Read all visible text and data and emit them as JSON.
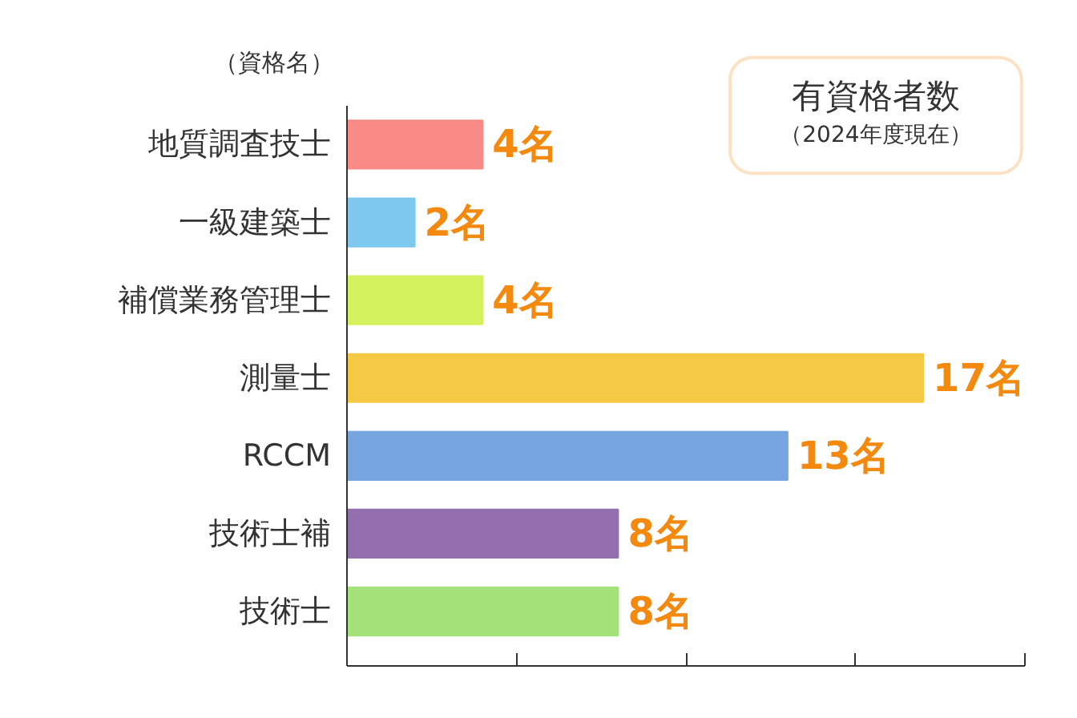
{
  "chart_data": {
    "type": "bar",
    "orientation": "horizontal",
    "title": "有資格者数",
    "subtitle": "（2024年度現在）",
    "ylabel": "（資格名）",
    "categories": [
      "地質調査技士",
      "一級建築士",
      "補償業務管理士",
      "測量士",
      "RCCM",
      "技術士補",
      "技術士"
    ],
    "values": [
      4,
      2,
      4,
      17,
      13,
      8,
      8
    ],
    "colors": [
      "#f98b87",
      "#7ec8ef",
      "#d4f15e",
      "#f6c944",
      "#77a5e0",
      "#9370ad",
      "#a4e27a"
    ],
    "value_labels": [
      "4名",
      "2名",
      "4名",
      "17名",
      "13名",
      "8名",
      "8名"
    ],
    "xlim": [
      0,
      20
    ],
    "xticks": [
      {
        "value": 0,
        "label": null
      },
      {
        "value": 5,
        "label": null
      },
      {
        "value": 10,
        "label": null
      },
      {
        "value": 15,
        "label": null
      },
      {
        "value": 20,
        "label": null
      }
    ],
    "tick_labels": "y",
    "grid": false
  }
}
